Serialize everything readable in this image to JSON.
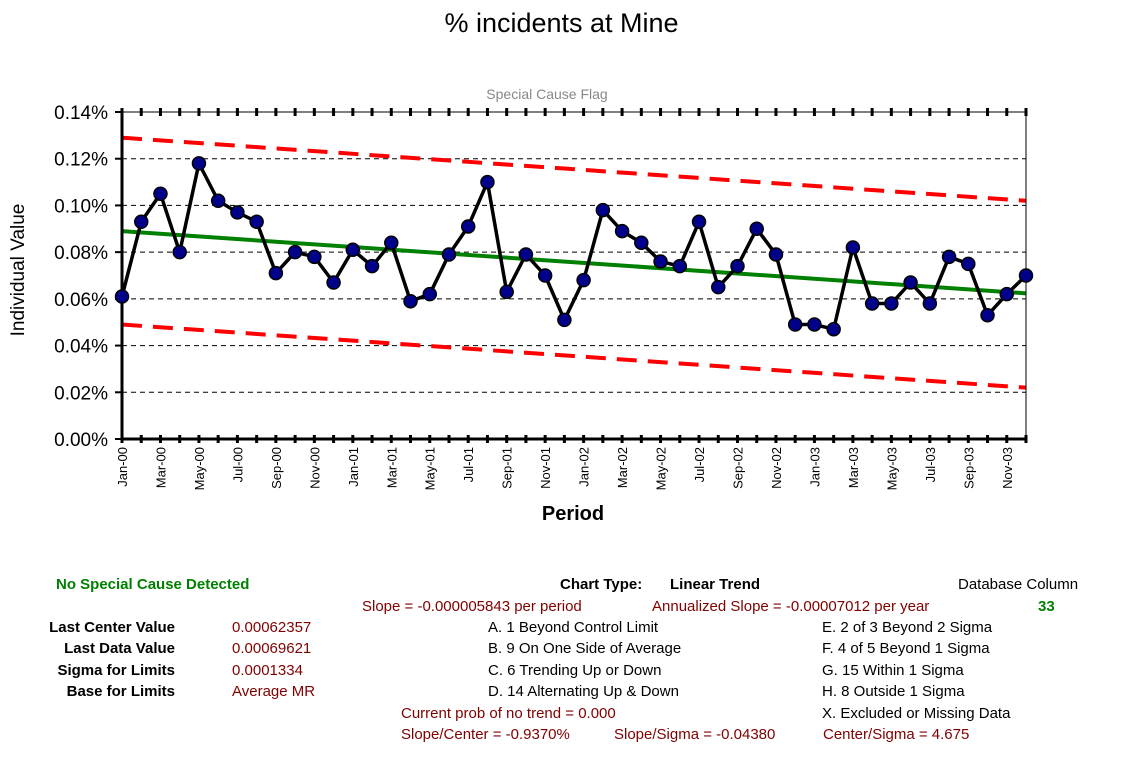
{
  "chart_data": {
    "type": "line",
    "title": "% incidents at Mine",
    "subtitle": "Special Cause Flag",
    "xlabel": "Period",
    "ylabel": "Individual Value",
    "ylim": [
      0,
      0.14
    ],
    "y_ticks": [
      "0.00%",
      "0.02%",
      "0.04%",
      "0.06%",
      "0.08%",
      "0.10%",
      "0.12%",
      "0.14%"
    ],
    "x_tick_labels": [
      "Jan-00",
      "Mar-00",
      "May-00",
      "Jul-00",
      "Sep-00",
      "Nov-00",
      "Jan-01",
      "Mar-01",
      "May-01",
      "Jul-01",
      "Sep-01",
      "Nov-01",
      "Jan-02",
      "Mar-02",
      "May-02",
      "Jul-02",
      "Sep-02",
      "Nov-02",
      "Jan-03",
      "Mar-03",
      "May-03",
      "Jul-03",
      "Sep-03",
      "Nov-03"
    ],
    "grid": true,
    "series": [
      {
        "role": "individual",
        "color": "#000000",
        "marker_color": "#00008B",
        "values": [
          0.00061,
          0.00093,
          0.00105,
          0.0008,
          0.00118,
          0.00102,
          0.00097,
          0.00093,
          0.00071,
          0.0008,
          0.00078,
          0.00067,
          0.00081,
          0.00074,
          0.00084,
          0.00059,
          0.00062,
          0.00079,
          0.00091,
          0.0011,
          0.00063,
          0.00079,
          0.0007,
          0.00051,
          0.00068,
          0.00098,
          0.00089,
          0.00084,
          0.00076,
          0.00074,
          0.00093,
          0.00065,
          0.00074,
          0.0009,
          0.00079,
          0.00049,
          0.00049,
          0.00047,
          0.00082,
          0.00058,
          0.00058,
          0.00067,
          0.00058,
          0.00078,
          0.00075,
          0.00053,
          0.00062,
          0.0007
        ]
      },
      {
        "role": "center",
        "color": "#008000",
        "start": 0.00089,
        "end": 0.00062357
      },
      {
        "role": "ucl",
        "color": "#FF0000",
        "dash": true,
        "start": 0.00129,
        "end": 0.00102
      },
      {
        "role": "lcl",
        "color": "#FF0000",
        "dash": true,
        "start": 0.00049,
        "end": 0.00022
      }
    ]
  },
  "info": {
    "status": "No Special Cause Detected",
    "chart_type_label": "Chart Type:",
    "chart_type_value": "Linear Trend",
    "database_column_label": "Database Column",
    "database_column_value": "33",
    "slope": "Slope = -0.000005843 per period",
    "annualized_slope": "Annualized Slope = -0.00007012 per year",
    "last_center_label": "Last Center Value",
    "last_center_value": "0.00062357",
    "last_data_label": "Last Data Value",
    "last_data_value": "0.00069621",
    "sigma_label": "Sigma for Limits",
    "sigma_value": "0.0001334",
    "base_label": "Base for Limits",
    "base_value": "Average MR",
    "rule_a": "A. 1 Beyond Control Limit",
    "rule_b": "B. 9 On One Side of Average",
    "rule_c": "C. 6 Trending Up or Down",
    "rule_d": "D. 14 Alternating  Up & Down",
    "rule_e": "E.  2 of 3 Beyond 2 Sigma",
    "rule_f": "F.  4 of 5 Beyond 1 Sigma",
    "rule_g": "G.  15 Within 1 Sigma",
    "rule_h": "H.  8 Outside 1 Sigma",
    "rule_x": "X.  Excluded or Missing Data",
    "prob_no_trend": "Current prob of no trend = 0.000",
    "slope_center": "Slope/Center = -0.9370%",
    "slope_sigma": "Slope/Sigma = -0.04380",
    "center_sigma": "Center/Sigma = 4.675"
  }
}
